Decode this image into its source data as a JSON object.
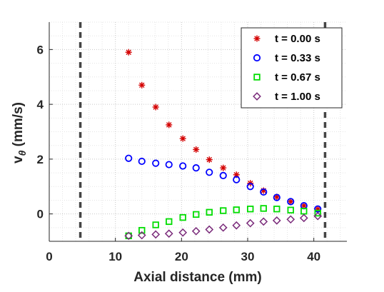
{
  "chart_data": {
    "type": "scatter",
    "title": "",
    "xlabel": "Axial distance (mm)",
    "ylabel": {
      "base": "v",
      "subscript": "θ",
      "unit": " (mm/s)"
    },
    "xlim": [
      0,
      45
    ],
    "ylim": [
      -1,
      7
    ],
    "xticks": [
      0,
      10,
      20,
      30,
      40
    ],
    "yticks": [
      0,
      2,
      4,
      6
    ],
    "grid": "dotted",
    "legend_position": "top-right",
    "vlines": [
      4.7,
      41.7
    ],
    "series": [
      {
        "name": "t = 0.00 s",
        "marker": "asterisk",
        "color": "#d40000",
        "x": [
          12.0,
          14.0,
          16.1,
          18.1,
          20.2,
          22.2,
          24.2,
          26.3,
          28.3,
          30.4,
          32.4,
          34.4,
          36.5,
          38.5,
          40.6
        ],
        "y": [
          5.9,
          4.7,
          3.9,
          3.25,
          2.75,
          2.35,
          1.98,
          1.68,
          1.43,
          1.12,
          0.85,
          0.62,
          0.45,
          0.3,
          0.18
        ]
      },
      {
        "name": "t = 0.33 s",
        "marker": "circle",
        "color": "#0000ff",
        "x": [
          12.0,
          14.0,
          16.1,
          18.1,
          20.2,
          22.2,
          24.2,
          26.3,
          28.3,
          30.4,
          32.4,
          34.4,
          36.5,
          38.5,
          40.6
        ],
        "y": [
          2.03,
          1.92,
          1.85,
          1.8,
          1.75,
          1.68,
          1.52,
          1.4,
          1.25,
          1.0,
          0.8,
          0.6,
          0.45,
          0.3,
          0.18
        ]
      },
      {
        "name": "t = 0.67 s",
        "marker": "square",
        "color": "#00dd00",
        "x": [
          12.0,
          14.0,
          16.1,
          18.1,
          20.2,
          22.2,
          24.2,
          26.3,
          28.3,
          30.4,
          32.4,
          34.4,
          36.5,
          38.5,
          40.6
        ],
        "y": [
          -0.8,
          -0.6,
          -0.4,
          -0.28,
          -0.13,
          -0.02,
          0.06,
          0.12,
          0.15,
          0.18,
          0.2,
          0.18,
          0.14,
          0.1,
          0.03
        ]
      },
      {
        "name": "t = 1.00 s",
        "marker": "diamond",
        "color": "#7a2a7a",
        "x": [
          12.0,
          14.0,
          16.1,
          18.1,
          20.2,
          22.2,
          24.2,
          26.3,
          28.3,
          30.4,
          32.4,
          34.4,
          36.5,
          38.5,
          40.6
        ],
        "y": [
          -0.8,
          -0.78,
          -0.75,
          -0.72,
          -0.68,
          -0.63,
          -0.57,
          -0.5,
          -0.42,
          -0.34,
          -0.28,
          -0.24,
          -0.2,
          -0.15,
          -0.08
        ]
      }
    ]
  }
}
